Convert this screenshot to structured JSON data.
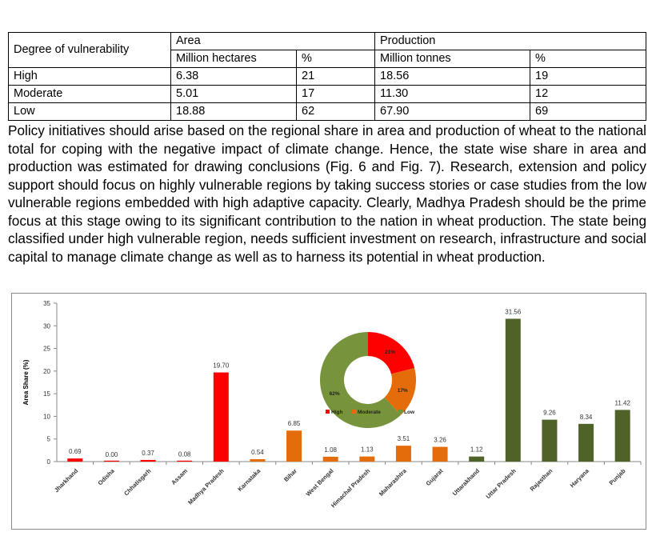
{
  "table": {
    "header": {
      "col0": "Degree of vulnerability",
      "area": "Area",
      "production": "Production",
      "sub": [
        "Million hectares",
        "%",
        "Million tonnes",
        "%"
      ]
    },
    "rows": [
      [
        "High",
        "6.38",
        "21",
        "18.56",
        "19"
      ],
      [
        "Moderate",
        "5.01",
        "17",
        "11.30",
        "12"
      ],
      [
        "Low",
        "18.88",
        "62",
        "67.90",
        "69"
      ]
    ]
  },
  "paragraph": "Policy initiatives should arise based on the regional share in area and production of wheat to the national total for coping with the negative impact of climate change. Hence, the state wise share in area and production was estimated for drawing conclusions (Fig. 6 and Fig. 7). Research, extension and policy support should focus on highly vulnerable regions by taking success stories or case studies from the low vulnerable regions embedded with high adaptive capacity. Clearly, Madhya Pradesh should be the prime focus at this stage owing to its significant contribution to the nation in wheat production. The state being classified under high vulnerable region, needs sufficient investment on research, infrastructure and social capital to manage climate change as well as to harness its potential in wheat production.",
  "chart_data": [
    {
      "type": "bar",
      "ylabel": "Area Share (%)",
      "ylim": [
        0,
        35
      ],
      "yticks": [
        0,
        5,
        10,
        15,
        20,
        25,
        30,
        35
      ],
      "grid": false,
      "categories": [
        "Jharkhand",
        "Odisha",
        "Chhatisgarh",
        "Assam",
        "Madhya Pradesh",
        "Karnataka",
        "Bihar",
        "West Bengal",
        "Himachal Pradesh",
        "Maharashtra",
        "Gujarat",
        "Uttarakhand",
        "Uttar Pradesh",
        "Rajasthan",
        "Haryana",
        "Punjab"
      ],
      "values": [
        0.69,
        0.0,
        0.37,
        0.08,
        19.7,
        0.54,
        6.85,
        1.08,
        1.13,
        3.51,
        3.26,
        1.12,
        31.56,
        9.26,
        8.34,
        11.42
      ],
      "labels": [
        "0.69",
        "0.00",
        "0.37",
        "0.08",
        "19.70",
        "0.54",
        "6.85",
        "1.08",
        "1.13",
        "3.51",
        "3.26",
        "1.12",
        "31.56",
        "9.26",
        "8.34",
        "11.42"
      ],
      "groups": [
        "High",
        "High",
        "High",
        "High",
        "High",
        "Moderate",
        "Moderate",
        "Moderate",
        "Moderate",
        "Moderate",
        "Moderate",
        "Low",
        "Low",
        "Low",
        "Low",
        "Low"
      ],
      "colors": {
        "High": "#ff0000",
        "Moderate": "#e46c0a",
        "Low": "#4f6228"
      }
    },
    {
      "type": "pie",
      "donut": true,
      "categories": [
        "High",
        "Moderate",
        "Low"
      ],
      "values": [
        21,
        17,
        62
      ],
      "labels": [
        "21%",
        "17%",
        "62%"
      ],
      "colors": [
        "#ff0000",
        "#e46c0a",
        "#77933c"
      ],
      "legend": "bottom"
    }
  ]
}
